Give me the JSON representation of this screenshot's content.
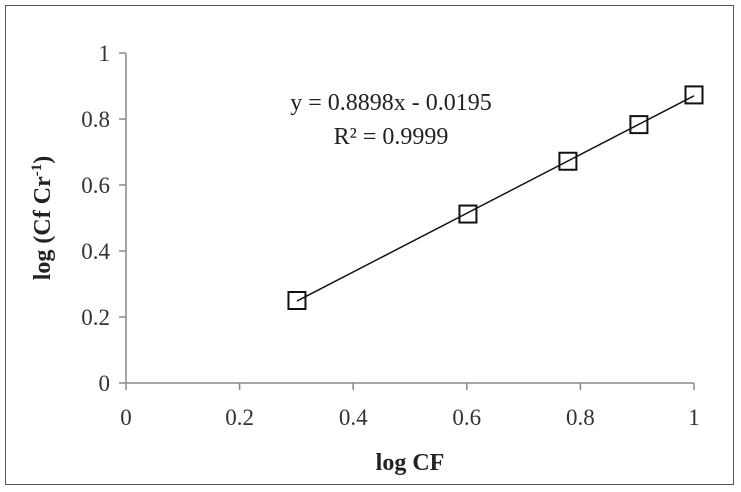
{
  "chart_data": {
    "type": "scatter",
    "title": "",
    "xlabel": "log CF",
    "ylabel_main": "log (Cf Cr",
    "ylabel_sup": "-1",
    "ylabel_close": ")",
    "xlim": [
      0,
      1
    ],
    "ylim": [
      0,
      1
    ],
    "xticks": [
      "0",
      "0.2",
      "0.4",
      "0.6",
      "0.8",
      "1"
    ],
    "yticks": [
      "0",
      "0.2",
      "0.4",
      "0.6",
      "0.8",
      "1"
    ],
    "grid": false,
    "legend": "none",
    "series": [
      {
        "marker": "open-square",
        "points": [
          {
            "x": 0.301,
            "y": 0.25
          },
          {
            "x": 0.602,
            "y": 0.512
          },
          {
            "x": 0.778,
            "y": 0.672
          },
          {
            "x": 0.903,
            "y": 0.783
          },
          {
            "x": 1.0,
            "y": 0.873
          }
        ]
      }
    ],
    "trendline": {
      "type": "linear",
      "slope": 0.8898,
      "intercept": -0.0195,
      "x_range": [
        0.301,
        1.0
      ]
    },
    "annotations": {
      "equation": "y = 0.8898x - 0.0195",
      "r_squared": "R² = 0.9999"
    },
    "colors": {
      "axis": "#888888",
      "line": "#111111",
      "marker": "#111111"
    }
  }
}
